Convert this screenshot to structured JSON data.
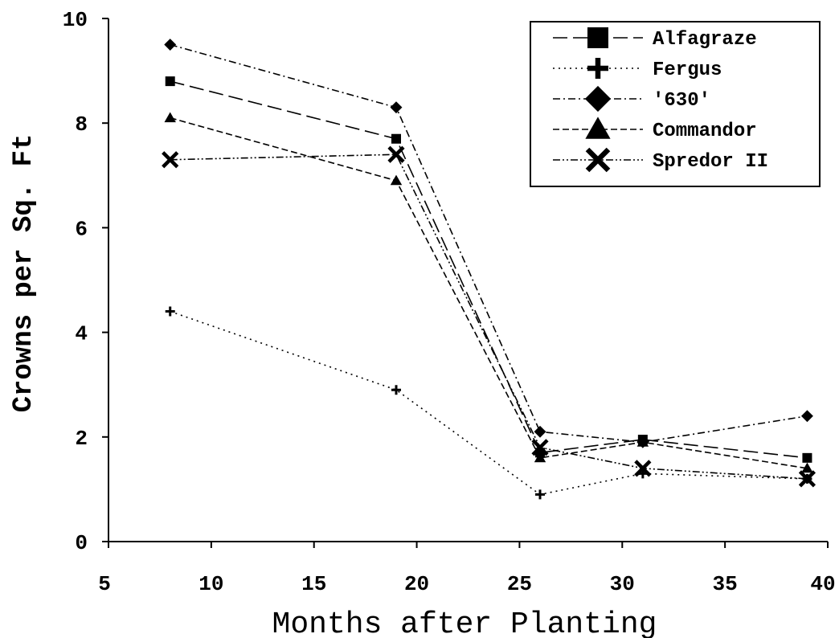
{
  "chart_data": {
    "type": "line",
    "title": "",
    "xlabel": "Months after Planting",
    "ylabel": "Crowns per Sq. Ft",
    "xlim": [
      5,
      40
    ],
    "ylim": [
      0,
      10
    ],
    "xticks": [
      5,
      10,
      15,
      20,
      25,
      30,
      35,
      40
    ],
    "yticks": [
      0,
      2,
      4,
      6,
      8,
      10
    ],
    "grid": false,
    "legend_position": "top-right",
    "x": [
      8,
      19,
      26,
      31,
      39
    ],
    "series": [
      {
        "name": "Alfagraze",
        "marker": "square",
        "dash": "long-dash",
        "values": [
          8.8,
          7.7,
          1.7,
          1.95,
          1.6
        ]
      },
      {
        "name": "Fergus",
        "marker": "plus",
        "dash": "dotted",
        "values": [
          4.4,
          2.9,
          0.9,
          1.3,
          1.2
        ]
      },
      {
        "name": "'630'",
        "marker": "diamond",
        "dash": "dash-dot",
        "values": [
          9.5,
          8.3,
          2.1,
          1.9,
          2.4
        ]
      },
      {
        "name": "Commandor",
        "marker": "triangle",
        "dash": "dashed",
        "values": [
          8.1,
          6.9,
          1.6,
          1.9,
          1.4
        ]
      },
      {
        "name": "Spredor II",
        "marker": "x",
        "dash": "dash-dot-dot",
        "values": [
          7.3,
          7.4,
          1.8,
          1.4,
          1.2
        ]
      }
    ]
  }
}
